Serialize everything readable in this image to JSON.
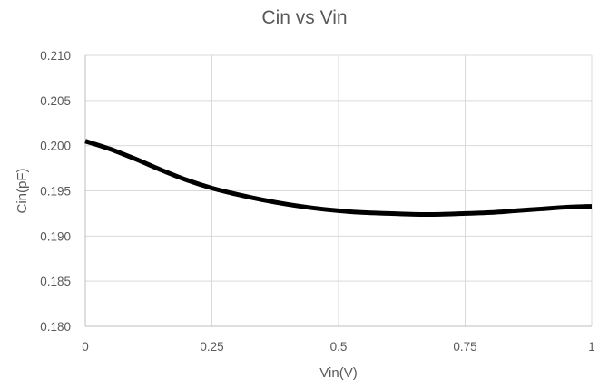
{
  "chart_data": {
    "type": "line",
    "title": "Cin vs Vin",
    "xlabel": "Vin(V)",
    "ylabel": "Cin(pF)",
    "xlim": [
      0,
      1
    ],
    "ylim": [
      0.18,
      0.21
    ],
    "x_ticks": [
      "0",
      "0.25",
      "0.5",
      "0.75",
      "1"
    ],
    "y_ticks": [
      "0.180",
      "0.185",
      "0.190",
      "0.195",
      "0.200",
      "0.205",
      "0.210"
    ],
    "grid": true,
    "legend": "none",
    "line_color": "#000000",
    "series": [
      {
        "x": [
          0,
          0.05,
          0.1,
          0.15,
          0.2,
          0.25,
          0.3,
          0.35,
          0.4,
          0.45,
          0.5,
          0.55,
          0.6,
          0.65,
          0.7,
          0.75,
          0.8,
          0.85,
          0.9,
          0.95,
          1.0
        ],
        "values": [
          0.2005,
          0.1996,
          0.1985,
          0.1973,
          0.1962,
          0.1953,
          0.1946,
          0.194,
          0.1935,
          0.1931,
          0.1928,
          0.1926,
          0.1925,
          0.1924,
          0.1924,
          0.1925,
          0.1926,
          0.1928,
          0.193,
          0.1932,
          0.1933
        ]
      }
    ]
  }
}
